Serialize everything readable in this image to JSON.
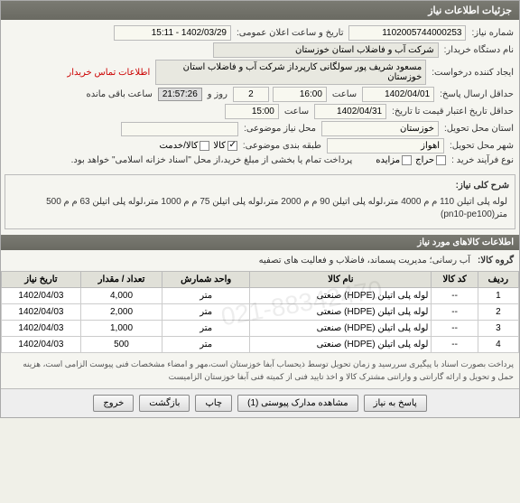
{
  "titlebar": "جزئیات اطلاعات نیاز",
  "labels": {
    "need_no": "شماره نیاز:",
    "announce_dt": "تاریخ و ساعت اعلان عمومی:",
    "device_name": "نام دستگاه خریدار:",
    "requester": "ایجاد کننده درخواست:",
    "contact_info": "اطلاعات تماس خریدار",
    "deadline": "حداقل ارسال پاسخ:",
    "day": "روز و",
    "hour": "ساعت",
    "remaining": "ساعت باقی مانده",
    "validity": "حداقل تاریخ اعتبار قیمت تا تاریخ:",
    "province": "استان محل تحویل:",
    "need_place": "محل نیاز موضوعی:",
    "city": "شهر محل تحویل:",
    "classification": "طبقه بندی موضوعی:",
    "process": "نوع فرآیند خرید :",
    "summary": "شرح کلی نیاز:",
    "goods_group": "گروه کالا:",
    "th_row": "ردیف",
    "th_code": "کد کالا",
    "th_name": "نام کالا",
    "th_unit": "واحد شمارش",
    "th_qty": "تعداد / مقدار",
    "th_date": "تاریخ نیاز",
    "btn_respond": "پاسخ به نیاز",
    "btn_attach": "مشاهده مدارک پیوستی (1)",
    "btn_print": "چاپ",
    "btn_back": "بازگشت",
    "btn_exit": "خروج",
    "goods_section": "اطلاعات کالاهای مورد نیاز",
    "cb_goods": "کالا",
    "cb_service": "کالا/خدمت",
    "cb_auction": "حراج",
    "cb_tender": "مزایده"
  },
  "values": {
    "need_no": "1102005744000253",
    "announce_dt": "1402/03/29 - 15:11",
    "device_name": "شرکت آب و فاضلاب استان خوزستان",
    "requester": "مسعود شریف پور سولگانی کارپرداز شرکت آب و فاضلاب استان خوزستان",
    "deadline_date": "1402/04/01",
    "deadline_time": "16:00",
    "days": "2",
    "timer": "21:57:26",
    "validity_date": "1402/04/31",
    "validity_time": "15:00",
    "province": "خوزستان",
    "city": "اهواز",
    "payment_note": "پرداخت تمام یا بخشی از مبلغ خرید،از محل \"اسناد خزانه اسلامی\" خواهد بود.",
    "summary": "لوله پلی اتیلن 110 م م 4000 متر،لوله پلی اتیلن 90 م م 2000 متر،لوله پلی اتیلن 75 م م 1000 متر،لوله پلی اتیلن 63 م م 500 متر(pn10-pe100)",
    "goods_group": "آب رسانی؛ مدیریت پسماند، فاضلاب و فعالیت های تصفیه",
    "note": "پرداخت بصورت اسناد با پیگیری سررسید و زمان تحویل توسط ذیحساب آبفا خوزستان است،مهر و امضاء مشخصات فنی پیوست الزامی است، هزینه حمل و تحویل و ارائه گارانتی و وارانتی مشترک کالا و اخذ تایید فنی از کمیته فنی آبفا خوزستان الزامیست"
  },
  "table": {
    "rows": [
      {
        "n": "1",
        "code": "--",
        "name": "لوله پلی اتیلن (HDPE) صنعتی",
        "unit": "متر",
        "qty": "4,000",
        "date": "1402/04/03"
      },
      {
        "n": "2",
        "code": "--",
        "name": "لوله پلی اتیلن (HDPE) صنعتی",
        "unit": "متر",
        "qty": "2,000",
        "date": "1402/04/03"
      },
      {
        "n": "3",
        "code": "--",
        "name": "لوله پلی اتیلن (HDPE) صنعتی",
        "unit": "متر",
        "qty": "1,000",
        "date": "1402/04/03"
      },
      {
        "n": "4",
        "code": "--",
        "name": "لوله پلی اتیلن (HDPE) صنعتی",
        "unit": "متر",
        "qty": "500",
        "date": "1402/04/03"
      }
    ]
  }
}
